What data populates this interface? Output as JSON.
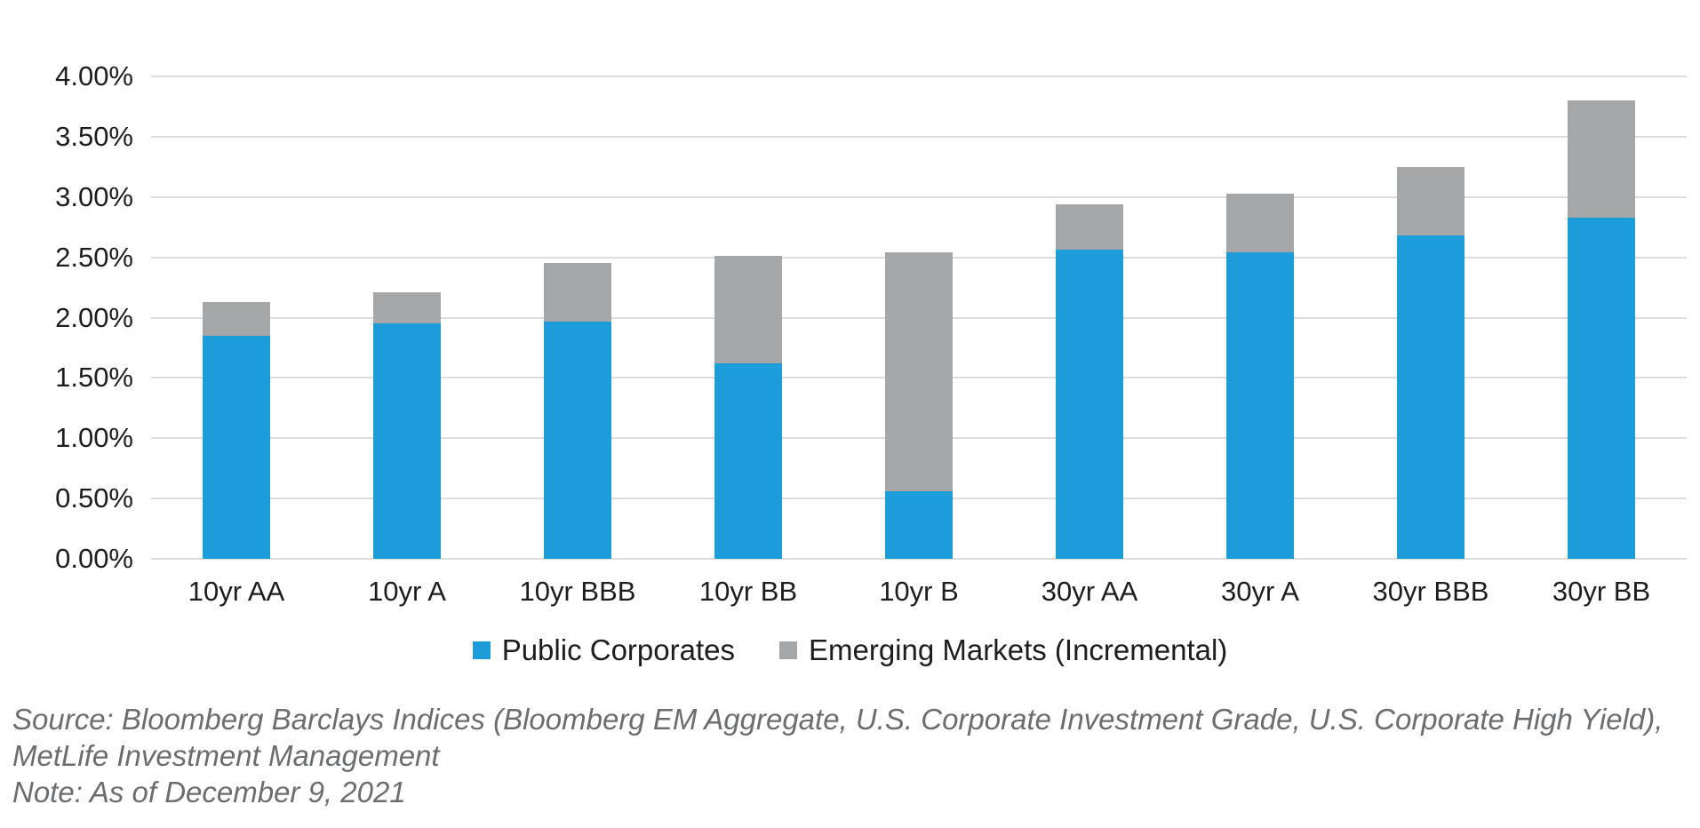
{
  "chart_data": {
    "type": "bar",
    "stacked": true,
    "title": "",
    "xlabel": "",
    "ylabel": "",
    "categories": [
      "10yr AA",
      "10yr A",
      "10yr BBB",
      "10yr BB",
      "10yr B",
      "30yr AA",
      "30yr A",
      "30yr BBB",
      "30yr BB"
    ],
    "series": [
      {
        "name": "Public Corporates",
        "color": "#1C9CD8",
        "values": [
          1.85,
          1.95,
          1.97,
          1.62,
          0.56,
          2.56,
          2.54,
          2.68,
          2.83
        ]
      },
      {
        "name": "Emerging Markets (Incremental)",
        "color": "#A5A7A9",
        "values": [
          0.28,
          0.26,
          0.48,
          0.89,
          1.98,
          0.38,
          0.49,
          0.57,
          0.97
        ]
      }
    ],
    "stacked_totals": [
      2.13,
      2.21,
      2.45,
      2.51,
      2.54,
      2.94,
      3.03,
      3.25,
      3.8
    ],
    "ylim": [
      0,
      4
    ],
    "ytick_step": 0.5,
    "ytick_labels": [
      "0.00%",
      "0.50%",
      "1.00%",
      "1.50%",
      "2.00%",
      "2.50%",
      "3.00%",
      "3.50%",
      "4.00%"
    ],
    "grid": true,
    "gridline_color": "#DEDEDE",
    "legend_position": "bottom",
    "value_format": "percent"
  },
  "legend": {
    "items": [
      {
        "label": "Public Corporates",
        "color": "#1C9CD8"
      },
      {
        "label": "Emerging Markets (Incremental)",
        "color": "#A5A7A9"
      }
    ]
  },
  "footer": {
    "source_line1": "Source: Bloomberg Barclays Indices (Bloomberg EM Aggregate, U.S. Corporate Investment Grade, U.S. Corporate High Yield),",
    "source_line2": "MetLife Investment Management",
    "note_line": "Note: As of December 9, 2021"
  },
  "colors": {
    "background": "#FFFFFF",
    "axis_text": "#1D1D1F",
    "source_text": "#6B6E71",
    "public_corporates_blue": "#1C9CD8",
    "emerging_markets_gray": "#A5A7A9",
    "gridline": "#DEDEDE"
  }
}
